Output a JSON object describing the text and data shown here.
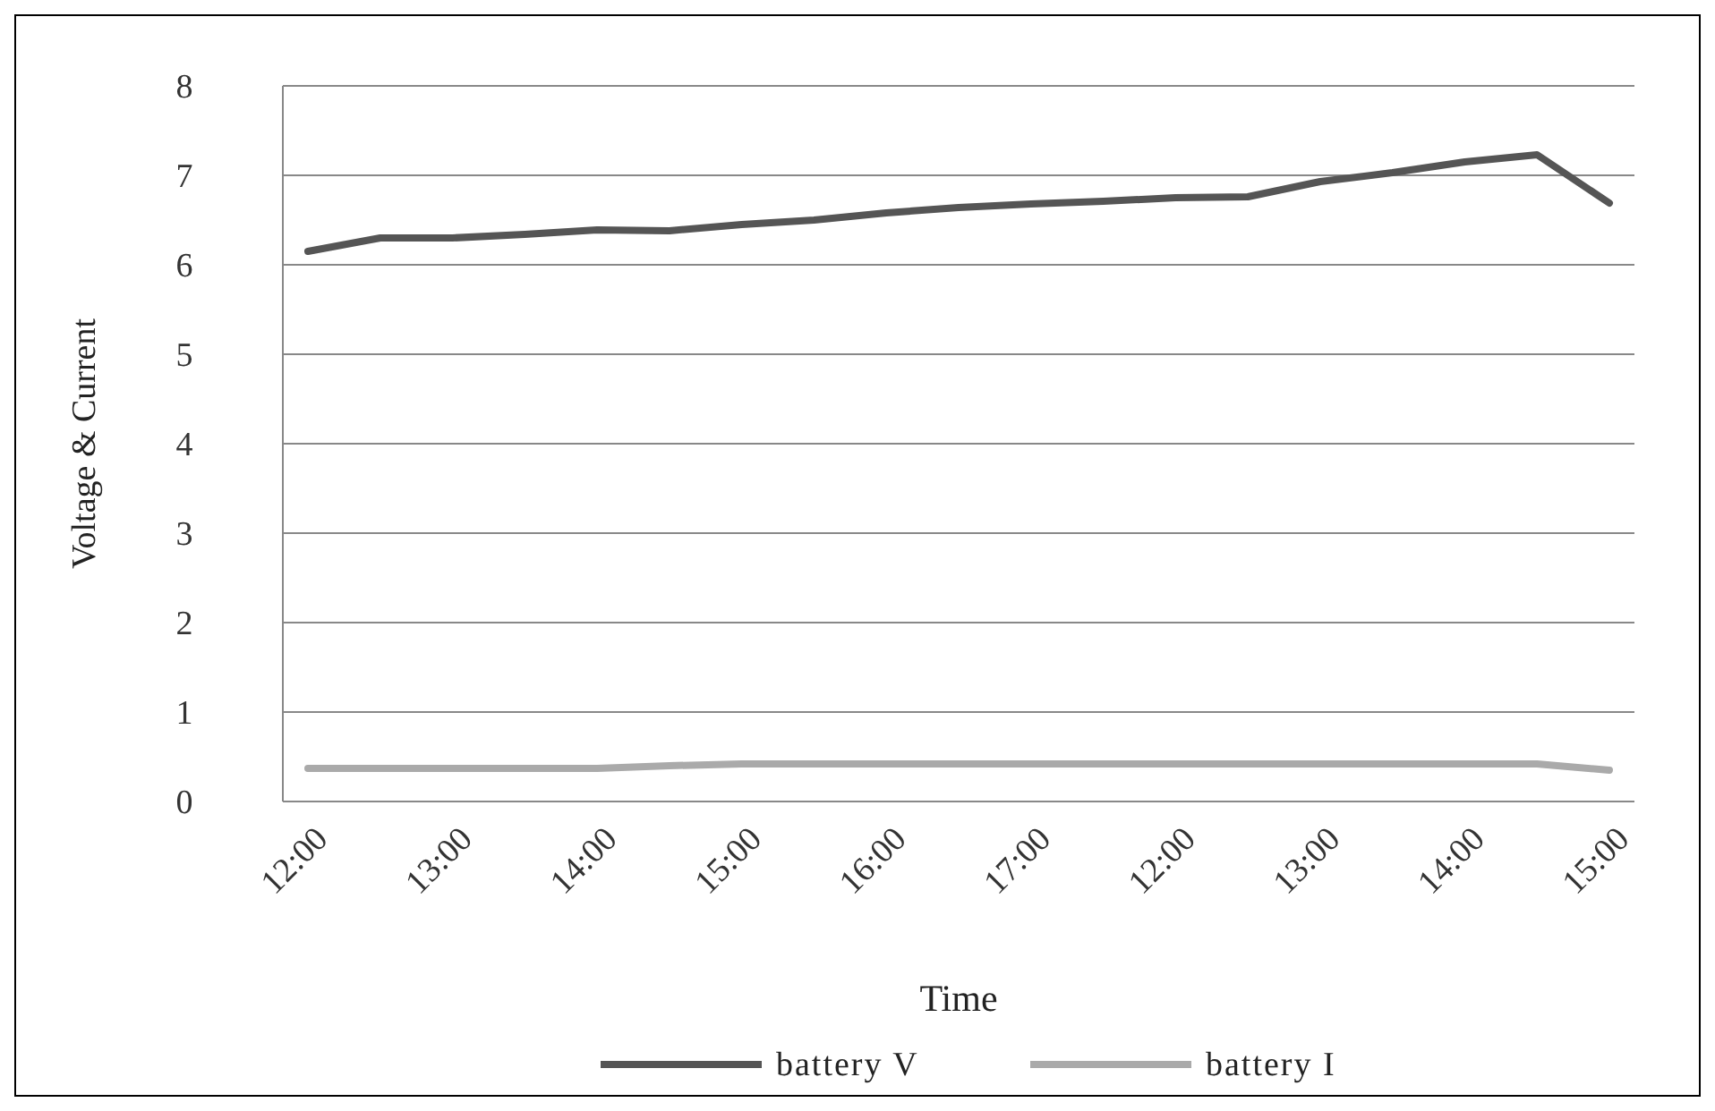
{
  "chart_data": {
    "type": "line",
    "xlabel": "Time",
    "ylabel": "Voltage & Current",
    "categories": [
      "12:00",
      null,
      "13:00",
      null,
      "14:00",
      null,
      "15:00",
      null,
      "16:00",
      null,
      "17:00",
      null,
      "12:00",
      null,
      "13:00",
      null,
      "14:00",
      null,
      "15:00"
    ],
    "series": [
      {
        "name": "battery V",
        "color": "#555555",
        "values": [
          6.15,
          6.3,
          6.3,
          6.34,
          6.39,
          6.38,
          6.45,
          6.5,
          6.58,
          6.64,
          6.68,
          6.71,
          6.75,
          6.76,
          6.93,
          7.03,
          7.15,
          7.23,
          6.69
        ]
      },
      {
        "name": "battery I",
        "color": "#aaaaaa",
        "values": [
          0.37,
          0.37,
          0.37,
          0.37,
          0.37,
          0.4,
          0.42,
          0.42,
          0.42,
          0.42,
          0.42,
          0.42,
          0.42,
          0.42,
          0.42,
          0.42,
          0.42,
          0.42,
          0.35
        ]
      }
    ],
    "ylim": [
      0,
      8
    ],
    "yticks": [
      0,
      1,
      2,
      3,
      4,
      5,
      6,
      7,
      8
    ],
    "grid": "y",
    "legend": "bottom",
    "marker": "none",
    "line_style": "solid"
  }
}
